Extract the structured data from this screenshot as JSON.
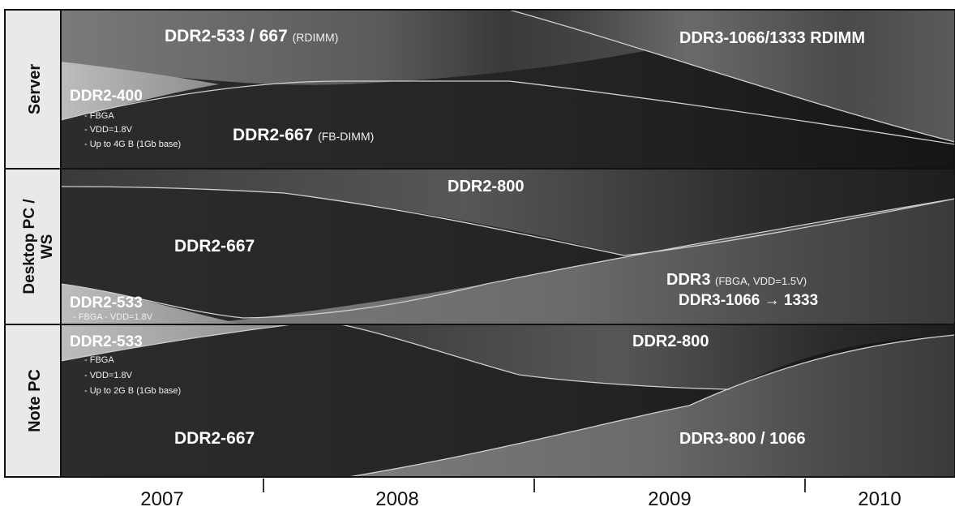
{
  "sections": {
    "server": {
      "label": "Server",
      "ddr2_533": {
        "main": "DDR2-533 / 667",
        "note": "(RDIMM)"
      },
      "ddr3_rdimm": {
        "main": "DDR3-1066/1333 RDIMM"
      },
      "ddr2_400": {
        "main": "DDR2-400",
        "notes": [
          "- FBGA",
          "- VDD=1.8V",
          "- Up to 4G B (1Gb base)"
        ]
      },
      "ddr2_667": {
        "main": "DDR2-667",
        "note": "(FB-DIMM)"
      }
    },
    "desktop": {
      "label_line1": "Desktop PC /",
      "label_line2": "WS",
      "ddr2_800": {
        "main": "DDR2-800"
      },
      "ddr2_667": {
        "main": "DDR2-667"
      },
      "ddr2_533": {
        "main": "DDR2-533",
        "note": "- FBGA    - VDD=1.8V"
      },
      "ddr3": {
        "main": "DDR3",
        "note": "(FBGA, VDD=1.5V)",
        "line2": "DDR3-1066 → 1333"
      }
    },
    "note": {
      "label": "Note PC",
      "ddr2_533": {
        "main": "DDR2-533",
        "notes": [
          "- FBGA",
          "- VDD=1.8V",
          "- Up to 2G B (1Gb base)"
        ]
      },
      "ddr2_800": {
        "main": "DDR2-800"
      },
      "ddr2_667": {
        "main": "DDR2-667"
      },
      "ddr3": {
        "main": "DDR3-800 / 1066"
      }
    }
  },
  "years": [
    "2007",
    "2008",
    "2009",
    "2010"
  ],
  "colors": {
    "background": "#ffffff",
    "label_column": "#e9e9e9",
    "dark_band": "#262626",
    "mid_band": "#6e6e6e",
    "light_band": "#a9a9a9",
    "text_on_band": "#ffffff"
  }
}
